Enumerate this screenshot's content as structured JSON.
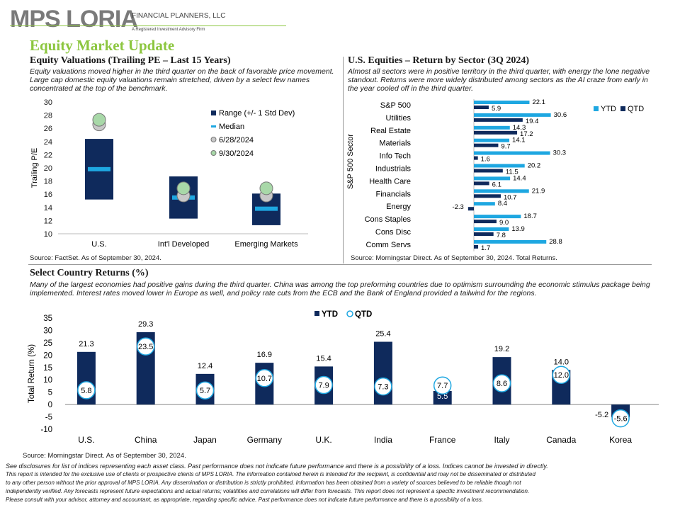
{
  "header": {
    "logo": "MPS LORIA",
    "logo_sub1": "FINANCIAL PLANNERS, LLC",
    "logo_sub2": "A Registered Investment Advisory Firm",
    "title": "Equity Market Update"
  },
  "valuation": {
    "title": "Equity Valuations (Trailing PE – Last 15 Years)",
    "desc": "Equity valuations moved higher in the third quarter on the back of favorable price movement. Large cap domestic equity valuations remain stretched, driven by a select few names concentrated at the top of the benchmark.",
    "source": "Source: FactSet. As of September 30, 2024."
  },
  "sector": {
    "title": "U.S. Equities – Return by Sector (3Q 2024)",
    "desc": "Almost all sectors were in positive territory in the third quarter, with energy the lone negative standout. Returns were more widely distributed among sectors as the AI craze from early in the year cooled off in the third quarter.",
    "source": "Source: Morningstar Direct. As of September 30, 2024. Total Returns."
  },
  "country": {
    "title": "Select Country Returns (%)",
    "desc": "Many of the largest economies had positive gains during the third quarter. China was among the top preforming countries due to optimism surrounding the economic stimulus package being implemented. Interest rates moved lower in Europe as well, and policy rate cuts from the ECB and the Bank of England provided a tailwind for the regions.",
    "source": "Source: Morningstar Direct. As of September 30, 2024."
  },
  "disclaimer": [
    "See disclosures for list of indices representing each asset class. Past performance does not indicate future performance and there is a possibility of a loss. Indices cannot be invested in directly.",
    "This report is intended for the exclusive use of clients or prospective clients of MPS LORIA. The information contained herein is intended for the recipient, is confidential and may not be disseminated or distributed",
    "to any other person without the prior approval of MPS LORIA. Any dissemination or distribution is strictly prohibited. Information has been obtained from a variety of sources believed to be reliable though not",
    "independently verified. Any forecasts represent future expectations and actual returns; volatilities and correlations will differ from forecasts. This report does not represent a specific investment recommendation.",
    "Please consult with your advisor, attorney and accountant, as appropriate, regarding specific advice. Past performance does not indicate future performance and there is a possibility of a loss."
  ],
  "colors": {
    "navy": "#0f2a5c",
    "cyan": "#1ea7e1",
    "green": "#8cc63f",
    "median": "#1ea7e1",
    "grey_dot": "#c8c8c8",
    "green_dot": "#a8d8a8"
  },
  "chart_data": [
    {
      "type": "range",
      "title": "",
      "ylabel": "Trailing P/E",
      "ylim": [
        10,
        30
      ],
      "yticks": [
        10,
        12,
        14,
        16,
        18,
        20,
        22,
        24,
        26,
        28,
        30
      ],
      "categories": [
        "U.S.",
        "Int'l Developed",
        "Emerging Markets"
      ],
      "range_low": [
        15.2,
        12.3,
        11.3
      ],
      "range_high": [
        24.4,
        18.7,
        16.1
      ],
      "median": [
        19.8,
        15.5,
        13.8
      ],
      "jun_2024": [
        26.6,
        15.8,
        15.8
      ],
      "sep_2024": [
        27.3,
        16.9,
        16.9
      ],
      "legend": [
        "Range (+/- 1 Std Dev)",
        "Median",
        "6/28/2024",
        "9/30/2024"
      ],
      "legend_position": "top-right"
    },
    {
      "type": "bar",
      "orientation": "horizontal",
      "title": "",
      "ylabel": "S&P 500  Sector",
      "categories": [
        "S&P 500",
        "Utilities",
        "Real Estate",
        "Materials",
        "Info Tech",
        "Industrials",
        "Health Care",
        "Financials",
        "Energy",
        "Cons Staples",
        "Cons Disc",
        "Comm Servs"
      ],
      "series": [
        {
          "name": "YTD",
          "values": [
            22.1,
            30.6,
            14.3,
            14.1,
            30.3,
            20.2,
            14.4,
            21.9,
            8.4,
            18.7,
            13.9,
            28.8
          ]
        },
        {
          "name": "QTD",
          "values": [
            5.9,
            19.4,
            17.2,
            9.7,
            1.6,
            11.5,
            6.1,
            10.7,
            -2.3,
            9.0,
            7.8,
            1.7
          ]
        }
      ],
      "value_labels_ytd": [
        "22.1",
        "30.6",
        "14.3",
        "14.1",
        "30.3",
        "20.2",
        "14.4",
        "21.9",
        "8.4",
        "18.7",
        "13.9",
        "28.8"
      ],
      "value_labels_qtd": [
        "5.9",
        "19.4",
        "17.2",
        "9.7",
        "1.6",
        "11.5",
        "6.1",
        "10.7",
        "-2.3",
        "9.0",
        "7.8",
        "1.7"
      ],
      "legend_position": "top-right"
    },
    {
      "type": "bar",
      "title": "",
      "ylabel": "Total Return  (%)",
      "ylim": [
        -10,
        35
      ],
      "yticks": [
        -10,
        -5,
        0,
        5,
        10,
        15,
        20,
        25,
        30,
        35
      ],
      "categories": [
        "U.S.",
        "China",
        "Japan",
        "Germany",
        "U.K.",
        "India",
        "France",
        "Italy",
        "Canada",
        "Korea"
      ],
      "series": [
        {
          "name": "YTD",
          "values": [
            21.3,
            29.3,
            12.4,
            16.9,
            15.4,
            25.4,
            5.5,
            19.2,
            14.0,
            -5.2
          ]
        },
        {
          "name": "QTD",
          "values": [
            5.8,
            23.5,
            5.7,
            10.7,
            7.9,
            7.3,
            7.7,
            8.6,
            12.0,
            -5.6
          ]
        }
      ],
      "value_labels_ytd": [
        "21.3",
        "29.3",
        "12.4",
        "16.9",
        "15.4",
        "25.4",
        "5.5",
        "19.2",
        "14.0",
        "-5.2"
      ],
      "value_labels_qtd": [
        "5.8",
        "23.5",
        "5.7",
        "10.7",
        "7.9",
        "7.3",
        "7.7",
        "8.6",
        "12.0",
        "-5.6"
      ],
      "legend_position": "top-center"
    }
  ]
}
